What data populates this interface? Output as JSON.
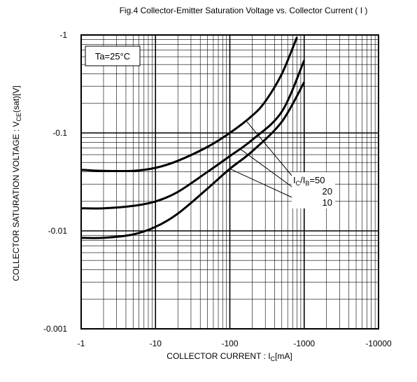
{
  "chart_data": {
    "type": "line",
    "title": "Fig.4  Collector-Emitter Saturation   Voltage vs. Collector Current ( I )",
    "xlabel": {
      "main": "COLLECTOR CURRENT : I",
      "sub": "C",
      "unit": "[mA]"
    },
    "ylabel": {
      "main": "COLLECTOR SATURATION VOLTAGE : V",
      "sub": "CE",
      "unit": "(sat)[V]"
    },
    "x_scale": "log",
    "y_scale": "log",
    "xlim": [
      -1,
      -10000
    ],
    "ylim": [
      -0.001,
      -1
    ],
    "x_ticks": [
      -1,
      -10,
      -100,
      -1000,
      -10000
    ],
    "x_tick_labels": [
      "-1",
      "-10",
      "-100",
      "-1000",
      "-10000"
    ],
    "y_ticks": [
      -0.001,
      -0.01,
      -0.1,
      -1
    ],
    "y_tick_labels": [
      "-0.001",
      "-0.01",
      "-0.1",
      "-1"
    ],
    "grid": true,
    "condition_label": "Ta=25°C",
    "legend_header": {
      "main": "I",
      "sub1": "C",
      "mid": "/I",
      "sub2": "B",
      "tail": "=50"
    },
    "series": [
      {
        "name": "50",
        "x": [
          -1,
          -2,
          -5,
          -10,
          -20,
          -50,
          -100,
          -200,
          -300,
          -500,
          -800
        ],
        "y": [
          -0.042,
          -0.041,
          -0.041,
          -0.044,
          -0.052,
          -0.072,
          -0.1,
          -0.15,
          -0.21,
          -0.4,
          -0.95
        ]
      },
      {
        "name": "20",
        "x": [
          -1,
          -2,
          -5,
          -10,
          -20,
          -50,
          -100,
          -200,
          -500,
          -1000
        ],
        "y": [
          -0.017,
          -0.017,
          -0.018,
          -0.02,
          -0.025,
          -0.04,
          -0.058,
          -0.085,
          -0.165,
          -0.55
        ]
      },
      {
        "name": "10",
        "x": [
          -1,
          -2,
          -5,
          -10,
          -20,
          -50,
          -100,
          -200,
          -500,
          -1000
        ],
        "y": [
          -0.0085,
          -0.0085,
          -0.0092,
          -0.011,
          -0.015,
          -0.027,
          -0.043,
          -0.065,
          -0.13,
          -0.33
        ]
      }
    ]
  }
}
